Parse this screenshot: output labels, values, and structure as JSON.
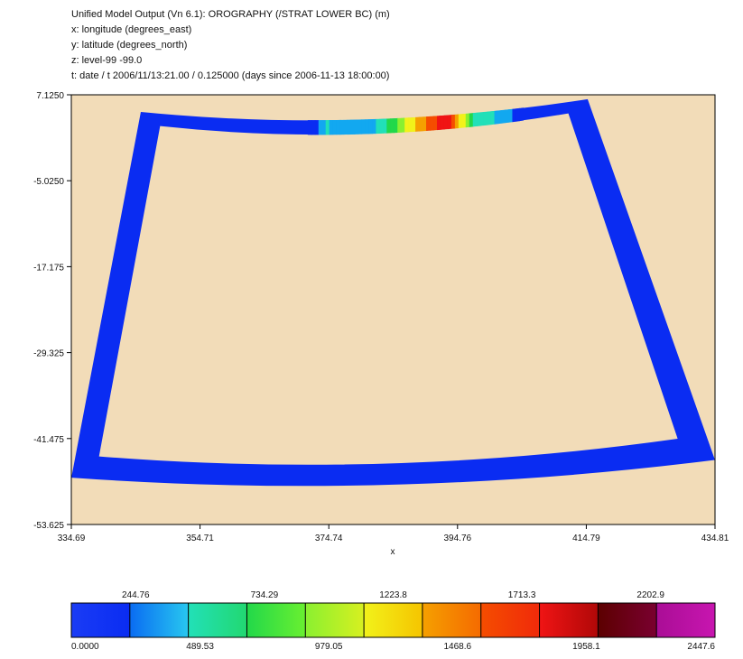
{
  "header": {
    "title": "Unified Model Output (Vn 6.1): OROGRAPHY (/STRAT LOWER BC) (m)",
    "x_line": "x: longitude  (degrees_east)",
    "y_line": "y: latitude  (degrees_north)",
    "z_line": "z: level-99 -99.0",
    "t_line": "t: date / t 2006/11/13:21.00 / 0.125000 (days since 2006-11-13 18:00:00)"
  },
  "chart_data": [
    {
      "type": "heatmap",
      "title": "Unified Model Output (Vn 6.1): OROGRAPHY (/STRAT LOWER BC) (m)",
      "xlabel": "x",
      "ylabel": "",
      "xlim": [
        334.69,
        434.81
      ],
      "ylim": [
        -53.625,
        7.125
      ],
      "x_ticks": [
        "334.69",
        "354.71",
        "374.74",
        "394.76",
        "414.79",
        "434.81"
      ],
      "y_ticks": [
        "7.1250",
        "-5.0250",
        "-17.175",
        "-29.325",
        "-41.475",
        "-53.625"
      ],
      "grid": false,
      "frame": {
        "description": "rotated-pole boundary strip (LBC domain) of orography values",
        "outer_corners_lon_lat": [
          [
            345.5,
            4.7
          ],
          [
            415.0,
            6.5
          ],
          [
            434.8,
            -44.5
          ],
          [
            334.7,
            -47.0
          ]
        ],
        "inner_corners_lon_lat": [
          [
            348.5,
            2.7
          ],
          [
            412.0,
            4.5
          ],
          [
            429.0,
            -41.5
          ],
          [
            339.0,
            -44.0
          ]
        ],
        "top_edge_sag_deg": 4.0,
        "bottom_edge_sag_deg": 4.5,
        "background_value": "missing",
        "background_color": "#f2dcb8"
      },
      "features": [
        {
          "lon": 374.5,
          "value": 500
        },
        {
          "lon": 381.0,
          "value": 300
        },
        {
          "lon": 388.5,
          "value": 1500
        },
        {
          "lon": 393.0,
          "value": 2200
        },
        {
          "lon": 397.5,
          "value": 700
        },
        {
          "lon": 402.0,
          "value": 400
        }
      ]
    },
    {
      "type": "colorbar",
      "levels": [
        "0.0000",
        "244.76",
        "489.53",
        "734.29",
        "979.05",
        "1223.8",
        "1468.6",
        "1713.3",
        "1958.1",
        "2202.9",
        "2447.6"
      ],
      "colors": [
        "#0a2cf2",
        "#12a8f0",
        "#22e0b8",
        "#22d84a",
        "#8af030",
        "#f2f21a",
        "#f5a000",
        "#f54d00",
        "#f01414",
        "#5c0000",
        "#aa0d96"
      ]
    }
  ]
}
